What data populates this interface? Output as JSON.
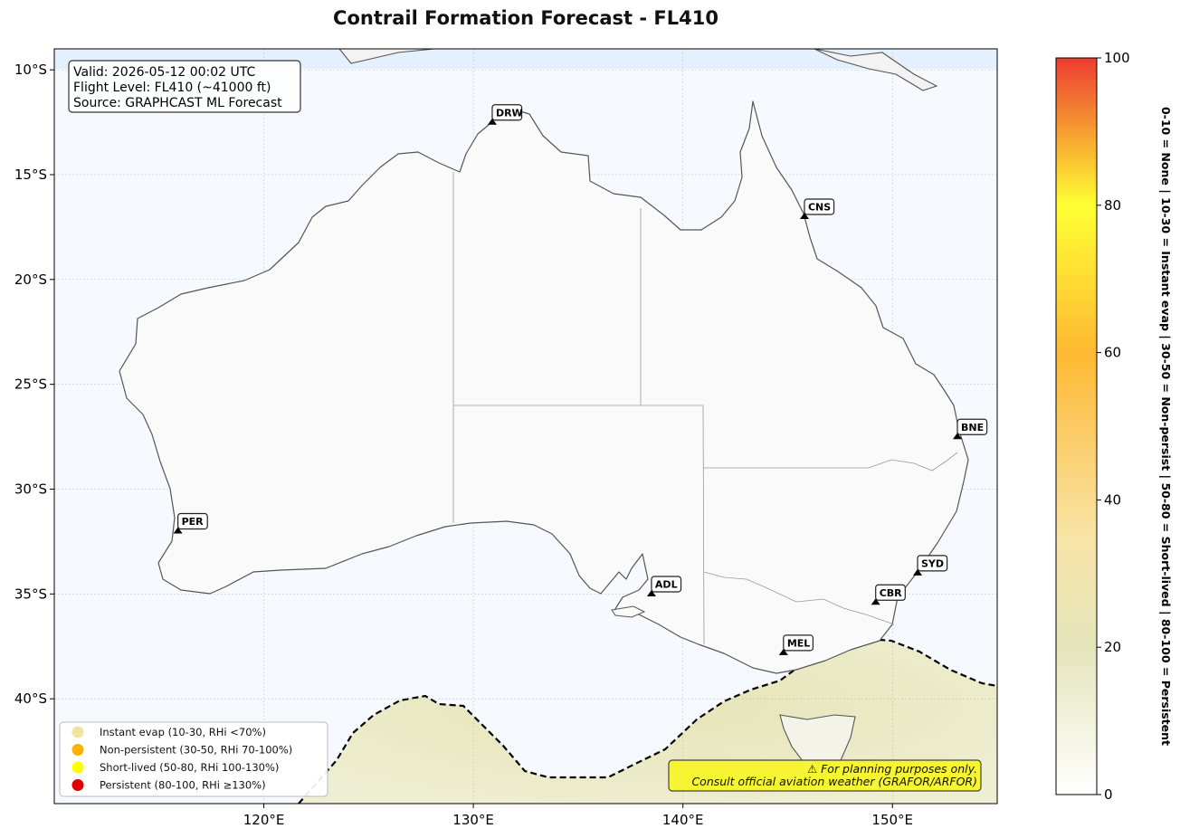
{
  "title": "Contrail Formation Forecast - FL410",
  "info_box": {
    "valid": "Valid: 2026-05-12 00:02 UTC",
    "flight_level": "Flight Level: FL410 (~41000 ft)",
    "source": "Source: GRAPHCAST ML Forecast"
  },
  "axes": {
    "lon_min": 110,
    "lon_max": 155,
    "lat_min": -45,
    "lat_max": -9,
    "lon_ticks": [
      {
        "v": 120,
        "label": "120°E"
      },
      {
        "v": 130,
        "label": "130°E"
      },
      {
        "v": 140,
        "label": "140°E"
      },
      {
        "v": 150,
        "label": "150°E"
      }
    ],
    "lat_ticks": [
      {
        "v": -10,
        "label": "10°S"
      },
      {
        "v": -15,
        "label": "15°S"
      },
      {
        "v": -20,
        "label": "20°S"
      },
      {
        "v": -25,
        "label": "25°S"
      },
      {
        "v": -30,
        "label": "30°S"
      },
      {
        "v": -35,
        "label": "35°S"
      },
      {
        "v": -40,
        "label": "40°S"
      }
    ]
  },
  "airports": [
    {
      "code": "DRW",
      "lon": 130.9,
      "lat": -12.4
    },
    {
      "code": "CNS",
      "lon": 145.8,
      "lat": -16.9
    },
    {
      "code": "BNE",
      "lon": 153.1,
      "lat": -27.4
    },
    {
      "code": "PER",
      "lon": 115.9,
      "lat": -31.9
    },
    {
      "code": "ADL",
      "lon": 138.5,
      "lat": -34.9
    },
    {
      "code": "SYD",
      "lon": 151.2,
      "lat": -33.9
    },
    {
      "code": "CBR",
      "lon": 149.2,
      "lat": -35.3
    },
    {
      "code": "MEL",
      "lon": 144.8,
      "lat": -37.7
    }
  ],
  "legend": [
    {
      "label": "Instant evap (10-30, RHi <70%)",
      "color": "#f0e4a0"
    },
    {
      "label": "Non-persistent (30-50, RHi 70-100%)",
      "color": "#ffb000"
    },
    {
      "label": "Short-lived (50-80, RHi 100-130%)",
      "color": "#ffff00"
    },
    {
      "label": "Persistent (80-100, RHi ≥130%)",
      "color": "#e00000"
    }
  ],
  "disclaimer": {
    "line1": "⚠ For planning purposes only.",
    "line2": "Consult official aviation weather (GRAFOR/ARFOR)"
  },
  "colorbar": {
    "min": 0,
    "max": 100,
    "ticks": [
      "0",
      "20",
      "40",
      "60",
      "80",
      "100"
    ],
    "label": "0-10 = None  |  10-30 = Instant evap  |  30-50 = Non-persist  |  50-80 = Short-lived  |  80-100 = Persistent"
  },
  "colors": {
    "ocean": "#f6faff",
    "land": "#fafafa",
    "coast": "#555555",
    "contour": "#000000",
    "disclaimer_bg": "#f7f434"
  }
}
